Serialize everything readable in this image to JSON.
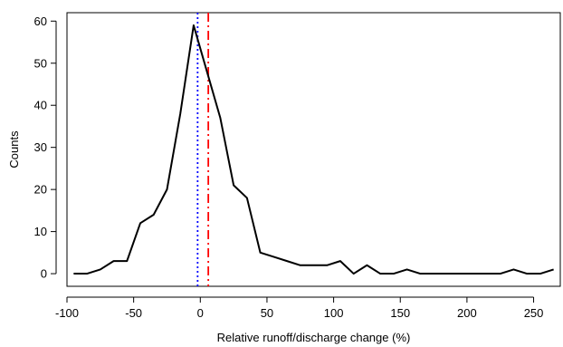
{
  "chart_data": {
    "type": "line",
    "title": "",
    "xlabel": "Relative runoff/discharge change (%)",
    "ylabel": "Counts",
    "xlim": [
      -100,
      270
    ],
    "ylim": [
      -3,
      62
    ],
    "x_ticks": [
      -100,
      -50,
      0,
      50,
      100,
      150,
      200,
      250
    ],
    "x_tick_labels": [
      "-100",
      "-50",
      "0",
      "50",
      "100",
      "150",
      "200",
      "250"
    ],
    "y_ticks": [
      0,
      10,
      20,
      30,
      40,
      50,
      60
    ],
    "y_tick_labels": [
      "0",
      "10",
      "20",
      "30",
      "40",
      "50",
      "60"
    ],
    "grid": false,
    "series": [
      {
        "color": "#000000",
        "x": [
          -95,
          -85,
          -75,
          -65,
          -55,
          -45,
          -35,
          -25,
          -15,
          -5,
          5,
          15,
          25,
          35,
          45,
          55,
          65,
          75,
          85,
          95,
          105,
          115,
          125,
          135,
          145,
          155,
          165,
          175,
          185,
          195,
          205,
          215,
          225,
          235,
          245,
          255,
          265
        ],
        "y": [
          0,
          0,
          1,
          3,
          3,
          12,
          14,
          20,
          38,
          59,
          48,
          37,
          21,
          18,
          5,
          4,
          3,
          2,
          2,
          2,
          3,
          0,
          2,
          0,
          0,
          1,
          0,
          0,
          0,
          0,
          0,
          0,
          0,
          1,
          0,
          0,
          1
        ]
      }
    ],
    "vlines": [
      {
        "x": -2,
        "color": "#0000ff",
        "style": "dotted"
      },
      {
        "x": 6,
        "color": "#ff0000",
        "style": "dashdot"
      }
    ]
  }
}
